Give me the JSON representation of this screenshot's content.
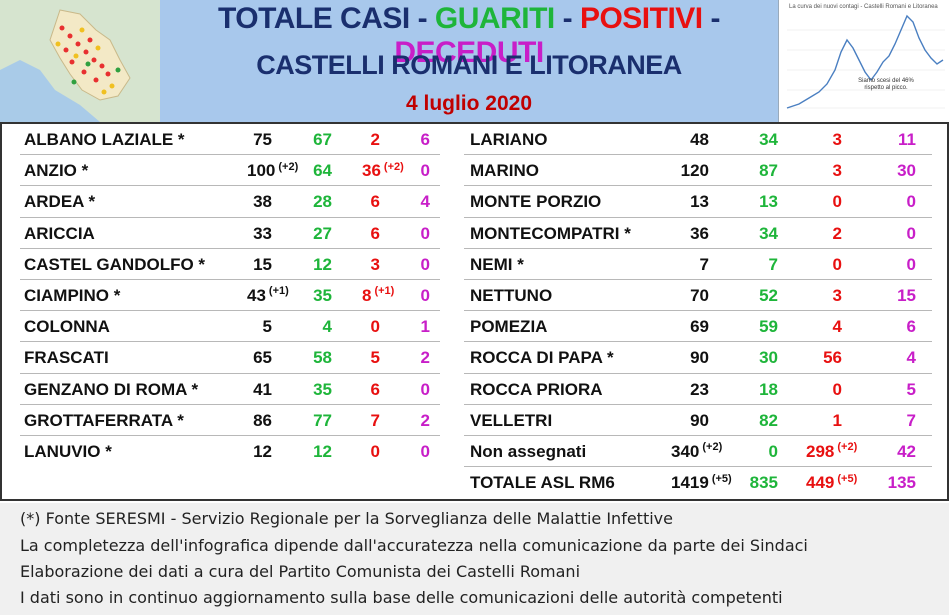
{
  "header": {
    "title_casi": "TOTALE CASI",
    "title_guariti": "GUARITI",
    "title_positivi": "POSITIVI",
    "title_deceduti": "DECEDUTI",
    "separator": "-",
    "subtitle": "CASTELLI ROMANI E LITORANEA",
    "date": "4 luglio 2020",
    "thumbnail_title": "La curva dei nuovi contagi - Castelli Romani e Litoranea",
    "thumbnail_note": "Siamo scesi del 46% rispetto al picco."
  },
  "colors": {
    "header_bg": "#a8c8ec",
    "navy": "#1a2f6e",
    "green": "#1eb53a",
    "red": "#e81010",
    "magenta": "#c81ec8",
    "date_red": "#c00000"
  },
  "left_rows": [
    {
      "name": "ALBANO LAZIALE *",
      "total": "75",
      "total_delta": "",
      "guariti": "67",
      "positivi": "2",
      "positivi_delta": "",
      "deceduti": "6"
    },
    {
      "name": "ANZIO *",
      "total": "100",
      "total_delta": "(+2)",
      "guariti": "64",
      "positivi": "36",
      "positivi_delta": "(+2)",
      "deceduti": "0"
    },
    {
      "name": "ARDEA *",
      "total": "38",
      "total_delta": "",
      "guariti": "28",
      "positivi": "6",
      "positivi_delta": "",
      "deceduti": "4"
    },
    {
      "name": "ARICCIA",
      "total": "33",
      "total_delta": "",
      "guariti": "27",
      "positivi": "6",
      "positivi_delta": "",
      "deceduti": "0"
    },
    {
      "name": "CASTEL GANDOLFO *",
      "total": "15",
      "total_delta": "",
      "guariti": "12",
      "positivi": "3",
      "positivi_delta": "",
      "deceduti": "0"
    },
    {
      "name": "CIAMPINO *",
      "total": "43",
      "total_delta": "(+1)",
      "guariti": "35",
      "positivi": "8",
      "positivi_delta": "(+1)",
      "deceduti": "0"
    },
    {
      "name": "COLONNA",
      "total": "5",
      "total_delta": "",
      "guariti": "4",
      "positivi": "0",
      "positivi_delta": "",
      "deceduti": "1"
    },
    {
      "name": "FRASCATI",
      "total": "65",
      "total_delta": "",
      "guariti": "58",
      "positivi": "5",
      "positivi_delta": "",
      "deceduti": "2"
    },
    {
      "name": "GENZANO DI ROMA *",
      "total": "41",
      "total_delta": "",
      "guariti": "35",
      "positivi": "6",
      "positivi_delta": "",
      "deceduti": "0"
    },
    {
      "name": "GROTTAFERRATA *",
      "total": "86",
      "total_delta": "",
      "guariti": "77",
      "positivi": "7",
      "positivi_delta": "",
      "deceduti": "2"
    },
    {
      "name": "LANUVIO *",
      "total": "12",
      "total_delta": "",
      "guariti": "12",
      "positivi": "0",
      "positivi_delta": "",
      "deceduti": "0"
    }
  ],
  "right_rows": [
    {
      "name": "LARIANO",
      "total": "48",
      "total_delta": "",
      "guariti": "34",
      "positivi": "3",
      "positivi_delta": "",
      "deceduti": "11"
    },
    {
      "name": "MARINO",
      "total": "120",
      "total_delta": "",
      "guariti": "87",
      "positivi": "3",
      "positivi_delta": "",
      "deceduti": "30"
    },
    {
      "name": "MONTE PORZIO",
      "total": "13",
      "total_delta": "",
      "guariti": "13",
      "positivi": "0",
      "positivi_delta": "",
      "deceduti": "0"
    },
    {
      "name": "MONTECOMPATRI *",
      "total": "36",
      "total_delta": "",
      "guariti": "34",
      "positivi": "2",
      "positivi_delta": "",
      "deceduti": "0"
    },
    {
      "name": "NEMI *",
      "total": "7",
      "total_delta": "",
      "guariti": "7",
      "positivi": "0",
      "positivi_delta": "",
      "deceduti": "0"
    },
    {
      "name": "NETTUNO",
      "total": "70",
      "total_delta": "",
      "guariti": "52",
      "positivi": "3",
      "positivi_delta": "",
      "deceduti": "15"
    },
    {
      "name": "POMEZIA",
      "total": "69",
      "total_delta": "",
      "guariti": "59",
      "positivi": "4",
      "positivi_delta": "",
      "deceduti": "6"
    },
    {
      "name": "ROCCA DI PAPA *",
      "total": "90",
      "total_delta": "",
      "guariti": "30",
      "positivi": "56",
      "positivi_delta": "",
      "deceduti": "4"
    },
    {
      "name": "ROCCA PRIORA",
      "total": "23",
      "total_delta": "",
      "guariti": "18",
      "positivi": "0",
      "positivi_delta": "",
      "deceduti": "5"
    },
    {
      "name": "VELLETRI",
      "total": "90",
      "total_delta": "",
      "guariti": "82",
      "positivi": "1",
      "positivi_delta": "",
      "deceduti": "7"
    },
    {
      "name": "Non assegnati",
      "total": "340",
      "total_delta": "(+2)",
      "guariti": "0",
      "positivi": "298",
      "positivi_delta": "(+2)",
      "deceduti": "42"
    },
    {
      "name": "TOTALE ASL RM6",
      "total": "1419",
      "total_delta": "(+5)",
      "guariti": "835",
      "positivi": "449",
      "positivi_delta": "(+5)",
      "deceduti": "135"
    }
  ],
  "footer": {
    "line1": "(*) Fonte SERESMI - Servizio Regionale per la Sorveglianza delle Malattie Infettive",
    "line2": "La completezza dell'infografica dipende dall'accuratezza nella comunicazione da parte dei Sindaci",
    "line3": "Elaborazione dei dati a cura del Partito Comunista dei Castelli Romani",
    "line4": "I dati sono in continuo aggiornamento sulla base delle comunicazioni delle autorità competenti"
  }
}
